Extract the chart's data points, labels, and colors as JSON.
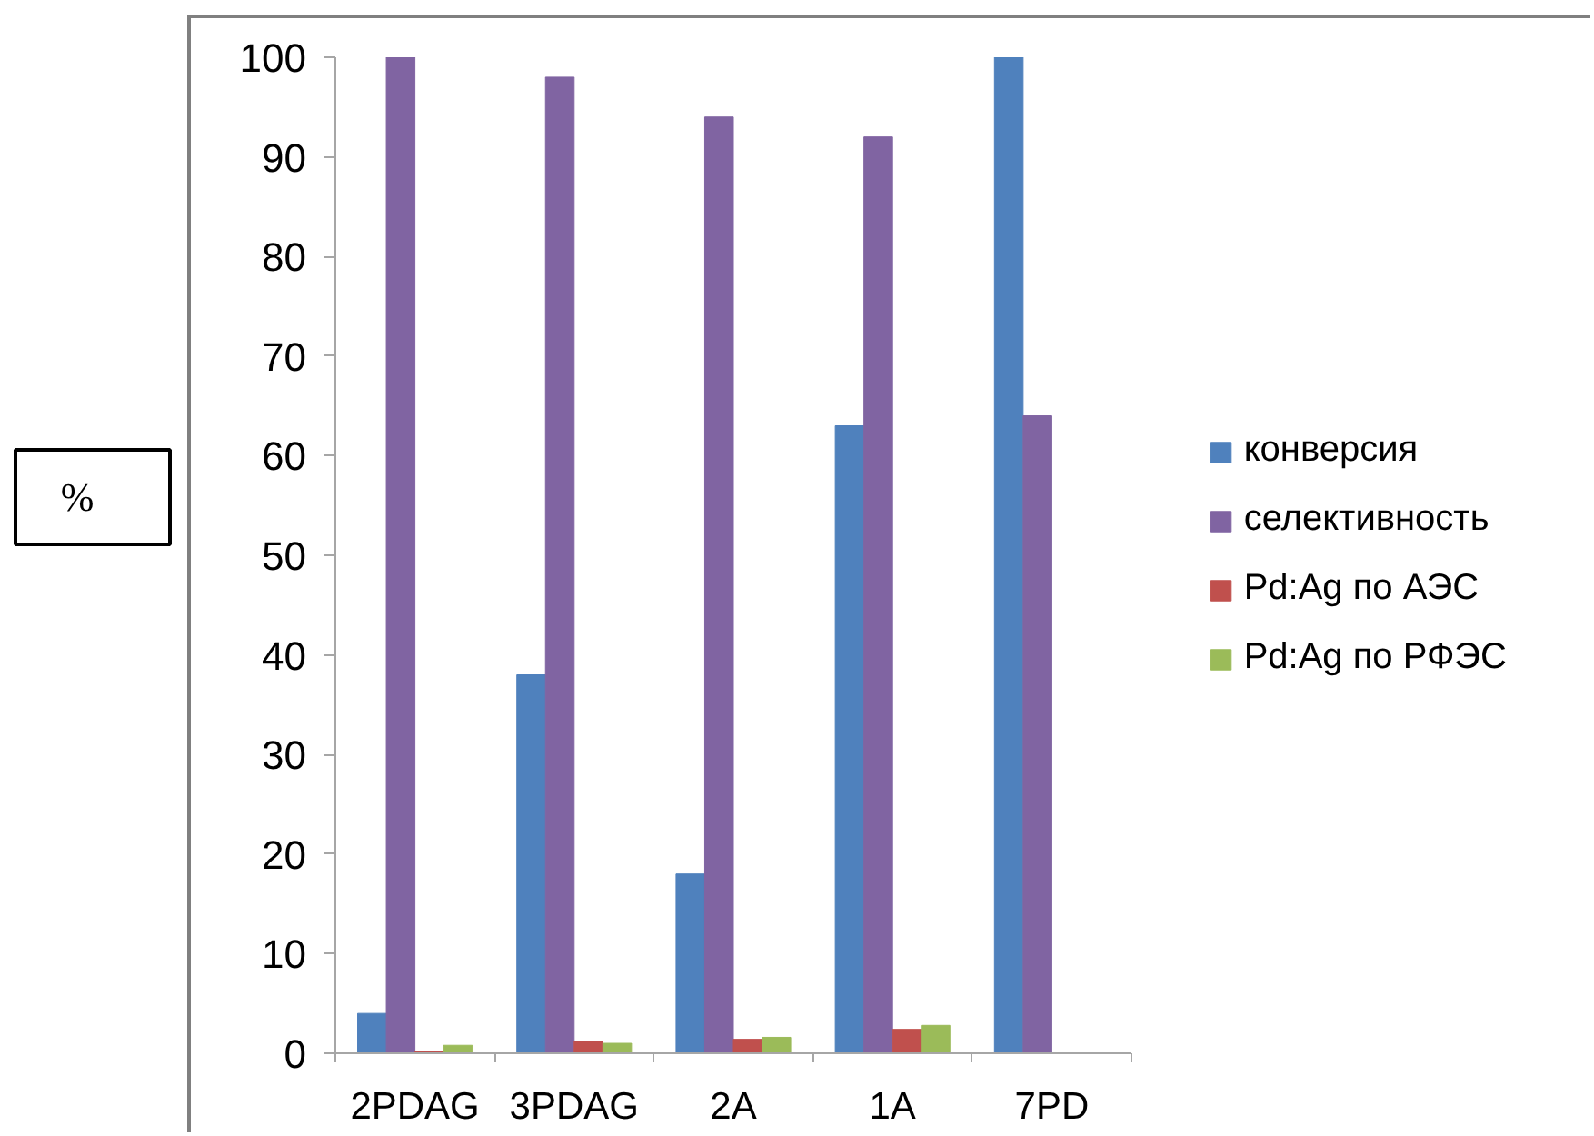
{
  "chart_data": {
    "type": "bar",
    "ylabel": "%",
    "categories": [
      "2PDAG",
      "3PDAG",
      "2A",
      "1A",
      "7PD"
    ],
    "series": [
      {
        "name": "конверсия",
        "color": "#4f81bd",
        "values": [
          4,
          38,
          18,
          63,
          100
        ]
      },
      {
        "name": "селективность",
        "color": "#8064a2",
        "values": [
          100,
          98,
          94,
          92,
          64
        ]
      },
      {
        "name": "Pd:Ag по АЭС",
        "color": "#c0504d",
        "values": [
          0.2,
          1.2,
          1.4,
          2.4,
          null
        ]
      },
      {
        "name": "Pd:Ag по РФЭС",
        "color": "#9bbb59",
        "values": [
          0.8,
          1.0,
          1.6,
          2.8,
          null
        ]
      }
    ],
    "ylim": [
      0,
      100
    ],
    "yticks": [
      0,
      10,
      20,
      30,
      40,
      50,
      60,
      70,
      80,
      90,
      100
    ],
    "grid": false,
    "legend": "right"
  }
}
